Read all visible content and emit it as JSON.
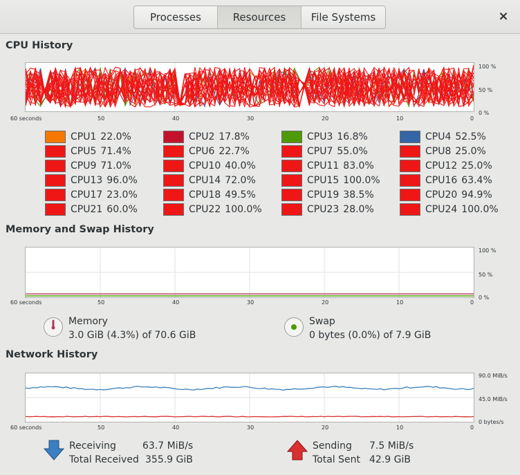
{
  "tabs": [
    {
      "label": "Processes"
    },
    {
      "label": "Resources"
    },
    {
      "label": "File Systems"
    }
  ],
  "close_label": "×",
  "cpu": {
    "title": "CPU History",
    "y_ticks": [
      "100 %",
      "50 %",
      "0 %"
    ],
    "x_ticks": [
      "60 seconds",
      "50",
      "40",
      "30",
      "20",
      "10",
      "0"
    ],
    "cores": [
      {
        "label": "CPU1",
        "value": "22.0%",
        "color": "#f57900"
      },
      {
        "label": "CPU2",
        "value": "17.8%",
        "color": "#c4122d"
      },
      {
        "label": "CPU3",
        "value": "16.8%",
        "color": "#4e9a06"
      },
      {
        "label": "CPU4",
        "value": "52.5%",
        "color": "#3465a4"
      },
      {
        "label": "CPU5",
        "value": "71.4%",
        "color": "#ef1616"
      },
      {
        "label": "CPU6",
        "value": "22.7%",
        "color": "#ef1616"
      },
      {
        "label": "CPU7",
        "value": "55.0%",
        "color": "#ef1616"
      },
      {
        "label": "CPU8",
        "value": "25.0%",
        "color": "#ef1616"
      },
      {
        "label": "CPU9",
        "value": "71.0%",
        "color": "#ef1616"
      },
      {
        "label": "CPU10",
        "value": "40.0%",
        "color": "#ef1616"
      },
      {
        "label": "CPU11",
        "value": "83.0%",
        "color": "#ef1616"
      },
      {
        "label": "CPU12",
        "value": "25.0%",
        "color": "#ef1616"
      },
      {
        "label": "CPU13",
        "value": "96.0%",
        "color": "#ef1616"
      },
      {
        "label": "CPU14",
        "value": "72.0%",
        "color": "#ef1616"
      },
      {
        "label": "CPU15",
        "value": "100.0%",
        "color": "#ef1616"
      },
      {
        "label": "CPU16",
        "value": "63.4%",
        "color": "#ef1616"
      },
      {
        "label": "CPU17",
        "value": "23.0%",
        "color": "#ef1616"
      },
      {
        "label": "CPU18",
        "value": "49.5%",
        "color": "#ef1616"
      },
      {
        "label": "CPU19",
        "value": "38.5%",
        "color": "#ef1616"
      },
      {
        "label": "CPU20",
        "value": "94.9%",
        "color": "#ef1616"
      },
      {
        "label": "CPU21",
        "value": "60.0%",
        "color": "#ef1616"
      },
      {
        "label": "CPU22",
        "value": "100.0%",
        "color": "#ef1616"
      },
      {
        "label": "CPU23",
        "value": "28.0%",
        "color": "#ef1616"
      },
      {
        "label": "CPU24",
        "value": "100.0%",
        "color": "#ef1616"
      }
    ]
  },
  "memory": {
    "title": "Memory and Swap History",
    "y_ticks": [
      "100 %",
      "50 %",
      "0 %"
    ],
    "x_ticks": [
      "60 seconds",
      "50",
      "40",
      "30",
      "20",
      "10",
      "0"
    ],
    "memory_label": "Memory",
    "memory_detail": "3.0 GiB (4.3%) of 70.6 GiB",
    "memory_percent": 4.3,
    "memory_color": "#ad3a5c",
    "swap_label": "Swap",
    "swap_detail": "0 bytes (0.0%) of 7.9 GiB",
    "swap_percent": 0.0,
    "swap_color": "#4e9a06"
  },
  "network": {
    "title": "Network History",
    "y_ticks": [
      "90.0 MiB/s",
      "45.0 MiB/s",
      "0 bytes/s"
    ],
    "x_ticks": [
      "60 seconds",
      "50",
      "40",
      "30",
      "20",
      "10",
      "0"
    ],
    "receiving_label": "Receiving",
    "receiving_value": "63.7 MiB/s",
    "total_received_label": "Total Received",
    "total_received_value": "355.9 GiB",
    "sending_label": "Sending",
    "sending_value": "7.5 MiB/s",
    "total_sent_label": "Total Sent",
    "total_sent_value": "42.9 GiB",
    "receive_color": "#3c7fc0",
    "send_color": "#d93030"
  }
}
